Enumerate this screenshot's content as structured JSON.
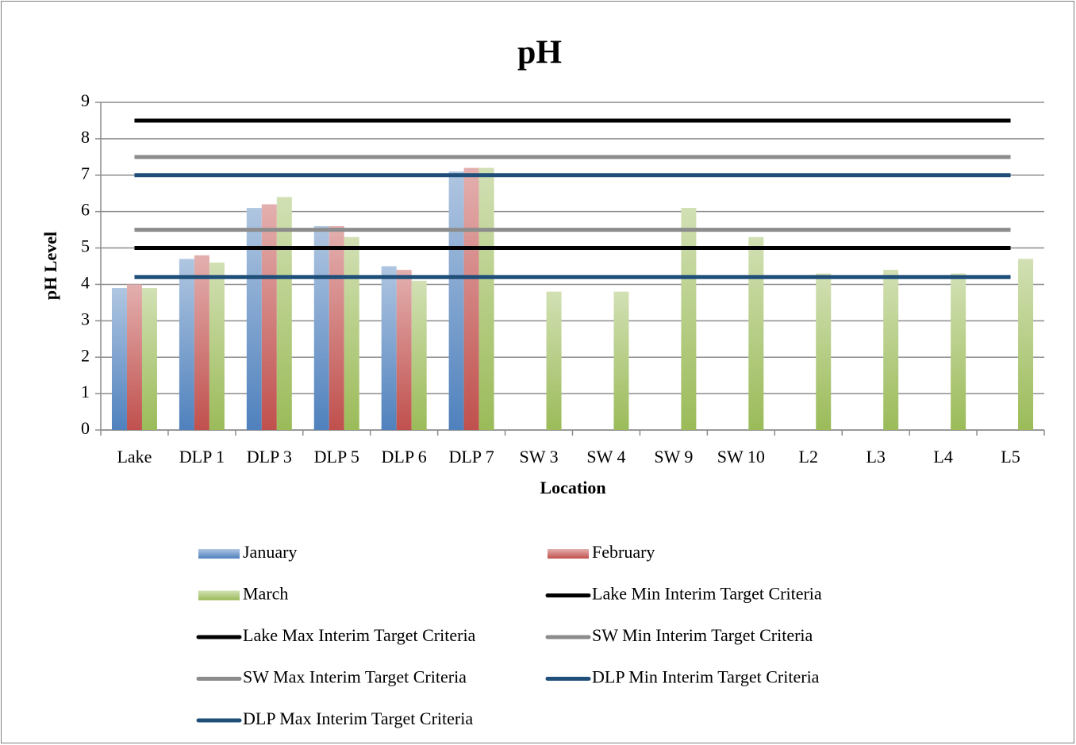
{
  "chart_data": {
    "type": "bar",
    "title": "pH",
    "x_label": "Location",
    "y_label": "pH Level",
    "categories": [
      "Lake",
      "DLP 1",
      "DLP 3",
      "DLP 5",
      "DLP 6",
      "DLP 7",
      "SW 3",
      "SW 4",
      "SW 9",
      "SW 10",
      "L2",
      "L3",
      "L4",
      "L5"
    ],
    "series": [
      {
        "name": "January",
        "color": "#4f81bd",
        "values": [
          3.9,
          4.7,
          6.1,
          5.6,
          4.5,
          7.1,
          null,
          null,
          null,
          null,
          null,
          null,
          null,
          null
        ]
      },
      {
        "name": "February",
        "color": "#c0504d",
        "values": [
          4.0,
          4.8,
          6.2,
          5.6,
          4.4,
          7.2,
          null,
          null,
          null,
          null,
          null,
          null,
          null,
          null
        ]
      },
      {
        "name": "March",
        "color": "#9bbb59",
        "values": [
          3.9,
          4.6,
          6.4,
          5.3,
          4.1,
          7.2,
          3.8,
          3.8,
          6.1,
          5.3,
          4.3,
          4.4,
          4.3,
          4.7
        ]
      },
      {
        "name": "Lake Min Interim Target Criteria",
        "type": "line",
        "color": "#000000",
        "values": [
          5,
          5,
          5,
          5,
          5,
          5,
          5,
          5,
          5,
          5,
          5,
          5,
          5,
          5
        ]
      },
      {
        "name": "Lake Max Interim Target Criteria",
        "type": "line",
        "color": "#000000",
        "values": [
          8.5,
          8.5,
          8.5,
          8.5,
          8.5,
          8.5,
          8.5,
          8.5,
          8.5,
          8.5,
          8.5,
          8.5,
          8.5,
          8.5
        ]
      },
      {
        "name": "SW Min Interim Target Criteria",
        "type": "line",
        "color": "#8c8c8c",
        "values": [
          5.5,
          5.5,
          5.5,
          5.5,
          5.5,
          5.5,
          5.5,
          5.5,
          5.5,
          5.5,
          5.5,
          5.5,
          5.5,
          5.5
        ]
      },
      {
        "name": "SW Max Interim Target Criteria",
        "type": "line",
        "color": "#8c8c8c",
        "values": [
          7.5,
          7.5,
          7.5,
          7.5,
          7.5,
          7.5,
          7.5,
          7.5,
          7.5,
          7.5,
          7.5,
          7.5,
          7.5,
          7.5
        ]
      },
      {
        "name": "DLP Min Interim Target Criteria",
        "type": "line",
        "color": "#1f4e79",
        "values": [
          4.2,
          4.2,
          4.2,
          4.2,
          4.2,
          4.2,
          4.2,
          4.2,
          4.2,
          4.2,
          4.2,
          4.2,
          4.2,
          4.2
        ]
      },
      {
        "name": "DLP Max Interim Target Criteria",
        "type": "line",
        "color": "#1f4e79",
        "values": [
          7,
          7,
          7,
          7,
          7,
          7,
          7,
          7,
          7,
          7,
          7,
          7,
          7,
          7
        ]
      }
    ],
    "ylim": [
      0,
      9
    ],
    "yticks": [
      0,
      1,
      2,
      3,
      4,
      5,
      6,
      7,
      8,
      9
    ],
    "grid": true,
    "legend": "bottom"
  }
}
